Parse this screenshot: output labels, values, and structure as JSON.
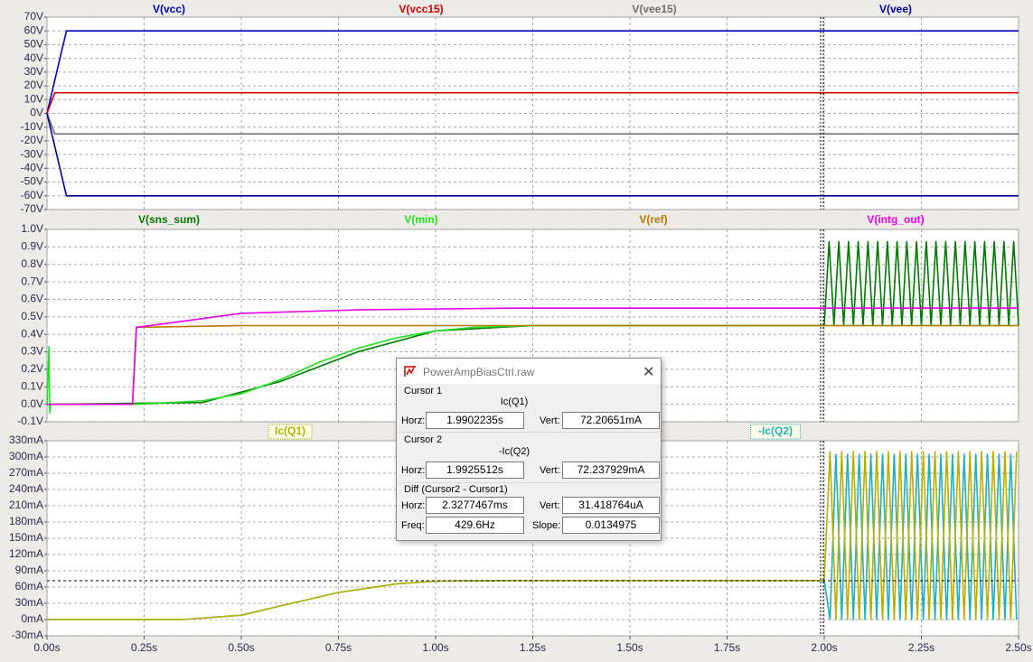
{
  "chart_data": [
    {
      "type": "line",
      "xlim": [
        0,
        2.5
      ],
      "ylim": [
        -70,
        70
      ],
      "yticks": [
        {
          "value": 70,
          "label": "70V"
        },
        {
          "value": 60,
          "label": "60V"
        },
        {
          "value": 50,
          "label": "50V"
        },
        {
          "value": 40,
          "label": "40V"
        },
        {
          "value": 30,
          "label": "30V"
        },
        {
          "value": 20,
          "label": "20V"
        },
        {
          "value": 10,
          "label": "10V"
        },
        {
          "value": 0,
          "label": "0V"
        },
        {
          "value": -10,
          "label": "-10V"
        },
        {
          "value": -20,
          "label": "-20V"
        },
        {
          "value": -30,
          "label": "-30V"
        },
        {
          "value": -40,
          "label": "-40V"
        },
        {
          "value": -50,
          "label": "-50V"
        },
        {
          "value": -60,
          "label": "-60V"
        },
        {
          "value": -70,
          "label": "-70V"
        }
      ],
      "grid": true,
      "series": [
        {
          "name": "V(vcc)",
          "color": "#0000c8",
          "x": [
            0,
            0.02,
            0.05,
            2.5
          ],
          "values": [
            0,
            24,
            60,
            60
          ]
        },
        {
          "name": "V(vcc15)",
          "color": "#d00000",
          "x": [
            0,
            0.02,
            0.05,
            2.5
          ],
          "values": [
            0,
            15,
            15,
            15
          ]
        },
        {
          "name": "V(vee15)",
          "color": "#707070",
          "x": [
            0,
            0.02,
            0.05,
            2.5
          ],
          "values": [
            0,
            -15,
            -15,
            -15
          ]
        },
        {
          "name": "V(vee)",
          "color": "#00009a",
          "x": [
            0,
            0.02,
            0.05,
            2.5
          ],
          "values": [
            0,
            -24,
            -60,
            -60
          ]
        }
      ]
    },
    {
      "type": "line",
      "xlim": [
        0,
        2.5
      ],
      "ylim": [
        -0.1,
        1.0
      ],
      "yticks": [
        {
          "value": 1.0,
          "label": "1.0V"
        },
        {
          "value": 0.9,
          "label": "0.9V"
        },
        {
          "value": 0.8,
          "label": "0.8V"
        },
        {
          "value": 0.7,
          "label": "0.7V"
        },
        {
          "value": 0.6,
          "label": "0.6V"
        },
        {
          "value": 0.5,
          "label": "0.5V"
        },
        {
          "value": 0.4,
          "label": "0.4V"
        },
        {
          "value": 0.3,
          "label": "0.3V"
        },
        {
          "value": 0.2,
          "label": "0.2V"
        },
        {
          "value": 0.1,
          "label": "0.1V"
        },
        {
          "value": 0.0,
          "label": "0.0V"
        },
        {
          "value": -0.1,
          "label": "-0.1V"
        }
      ],
      "grid": true,
      "series": [
        {
          "name": "V(sns_sum)",
          "color": "#007a00",
          "x": [
            0,
            0.4,
            0.6,
            0.8,
            1.0,
            1.25,
            2.0,
            2.0125,
            2.025,
            2.0375,
            2.05,
            2.0625,
            2.075,
            2.0875,
            2.1,
            2.1125,
            2.125,
            2.1375,
            2.15,
            2.1625,
            2.175,
            2.1875,
            2.2,
            2.2125,
            2.225,
            2.2375,
            2.25,
            2.2625,
            2.275,
            2.2875,
            2.3,
            2.3125,
            2.325,
            2.3375,
            2.35,
            2.3625,
            2.375,
            2.3875,
            2.4,
            2.4125,
            2.425,
            2.4375,
            2.45,
            2.4625,
            2.475,
            2.4875,
            2.5
          ],
          "values": [
            0,
            0.01,
            0.13,
            0.3,
            0.42,
            0.45,
            0.45,
            0.93,
            0.45,
            0.93,
            0.45,
            0.93,
            0.45,
            0.93,
            0.45,
            0.93,
            0.45,
            0.93,
            0.45,
            0.93,
            0.45,
            0.93,
            0.45,
            0.93,
            0.45,
            0.93,
            0.45,
            0.93,
            0.45,
            0.93,
            0.45,
            0.93,
            0.45,
            0.93,
            0.45,
            0.93,
            0.45,
            0.93,
            0.45,
            0.93,
            0.45,
            0.93,
            0.45,
            0.93,
            0.45,
            0.93,
            0.45
          ]
        },
        {
          "name": "V(min)",
          "color": "#22e022",
          "x": [
            0,
            0.005,
            0.007,
            0.01,
            0.02,
            0.23,
            0.4,
            0.5,
            0.6,
            0.7,
            0.8,
            0.9,
            1.0,
            1.1,
            1.25,
            2.0,
            2.5
          ],
          "values": [
            0,
            0.33,
            -0.05,
            0,
            0,
            0,
            0.02,
            0.06,
            0.14,
            0.24,
            0.32,
            0.38,
            0.42,
            0.44,
            0.45,
            0.45,
            0.45
          ]
        },
        {
          "name": "V(ref)",
          "color": "#b87800",
          "x": [
            0,
            0.22,
            0.23,
            0.5,
            2.0,
            2.5
          ],
          "values": [
            0,
            0,
            0.44,
            0.45,
            0.45,
            0.45
          ]
        },
        {
          "name": "V(intg_out)",
          "color": "#e800e8",
          "x": [
            0,
            0.22,
            0.23,
            0.3,
            0.5,
            0.8,
            1.2,
            2.0,
            2.5
          ],
          "values": [
            0,
            0,
            0.44,
            0.46,
            0.52,
            0.54,
            0.55,
            0.55,
            0.55
          ]
        }
      ]
    },
    {
      "type": "line",
      "xlim": [
        0,
        2.5
      ],
      "ylim": [
        -30,
        330
      ],
      "xticks": [
        {
          "value": 0,
          "label": "0.00s"
        },
        {
          "value": 0.25,
          "label": "0.25s"
        },
        {
          "value": 0.5,
          "label": "0.50s"
        },
        {
          "value": 0.75,
          "label": "0.75s"
        },
        {
          "value": 1.0,
          "label": "1.00s"
        },
        {
          "value": 1.25,
          "label": "1.25s"
        },
        {
          "value": 1.5,
          "label": "1.50s"
        },
        {
          "value": 1.75,
          "label": "1.75s"
        },
        {
          "value": 2.0,
          "label": "2.00s"
        },
        {
          "value": 2.25,
          "label": "2.25s"
        },
        {
          "value": 2.5,
          "label": "2.50s"
        }
      ],
      "yticks": [
        {
          "value": 330,
          "label": "330mA"
        },
        {
          "value": 300,
          "label": "300mA"
        },
        {
          "value": 270,
          "label": "270mA"
        },
        {
          "value": 240,
          "label": "240mA"
        },
        {
          "value": 210,
          "label": "210mA"
        },
        {
          "value": 180,
          "label": "180mA"
        },
        {
          "value": 150,
          "label": "150mA"
        },
        {
          "value": 120,
          "label": "120mA"
        },
        {
          "value": 90,
          "label": "90mA"
        },
        {
          "value": 60,
          "label": "60mA"
        },
        {
          "value": 30,
          "label": "30mA"
        },
        {
          "value": 0,
          "label": "0mA"
        },
        {
          "value": -30,
          "label": "-30mA"
        }
      ],
      "grid": true,
      "series": [
        {
          "name": "-Ic(Q2)",
          "color": "#20b0b8",
          "x": [
            0,
            0.35,
            0.5,
            0.6,
            0.75,
            0.9,
            1.0,
            1.2,
            2.0,
            2.015,
            2.03,
            2.045,
            2.06,
            2.075,
            2.09,
            2.105,
            2.12,
            2.135,
            2.15,
            2.165,
            2.18,
            2.195,
            2.21,
            2.225,
            2.24,
            2.255,
            2.27,
            2.285,
            2.3,
            2.315,
            2.33,
            2.345,
            2.36,
            2.375,
            2.39,
            2.405,
            2.42,
            2.435,
            2.45,
            2.465,
            2.48,
            2.495
          ],
          "values": [
            0,
            0,
            8,
            25,
            50,
            66,
            71,
            72,
            72,
            0,
            305,
            0,
            305,
            0,
            305,
            0,
            305,
            0,
            305,
            0,
            305,
            0,
            305,
            0,
            305,
            0,
            305,
            0,
            305,
            0,
            305,
            0,
            305,
            0,
            305,
            0,
            305,
            0,
            305,
            0,
            305,
            0
          ]
        },
        {
          "name": "Ic(Q1)",
          "color": "#b8b000",
          "x": [
            0,
            0.35,
            0.5,
            0.6,
            0.75,
            0.9,
            1.0,
            1.2,
            2.0,
            2.015,
            2.03,
            2.045,
            2.06,
            2.075,
            2.09,
            2.105,
            2.12,
            2.135,
            2.15,
            2.165,
            2.18,
            2.195,
            2.21,
            2.225,
            2.24,
            2.255,
            2.27,
            2.285,
            2.3,
            2.315,
            2.33,
            2.345,
            2.36,
            2.375,
            2.39,
            2.405,
            2.42,
            2.435,
            2.45,
            2.465,
            2.48,
            2.495
          ],
          "values": [
            0,
            0,
            8,
            25,
            50,
            66,
            71,
            72,
            72,
            310,
            0,
            310,
            0,
            310,
            0,
            310,
            0,
            310,
            0,
            310,
            0,
            310,
            0,
            310,
            0,
            310,
            0,
            310,
            0,
            310,
            0,
            310,
            0,
            310,
            0,
            310,
            0,
            310,
            0,
            310,
            0,
            310
          ]
        }
      ]
    }
  ],
  "dialog": {
    "title": "PowerAmpBiasCtrl.raw",
    "sections": [
      {
        "title": "Cursor 1",
        "trace": "Ic(Q1)",
        "fields": [
          {
            "label": "Horz:",
            "value": "1.9902235s"
          },
          {
            "label": "Vert:",
            "value": "72.20651mA"
          }
        ]
      },
      {
        "title": "Cursor 2",
        "trace": "-Ic(Q2)",
        "fields": [
          {
            "label": "Horz:",
            "value": "1.9925512s"
          },
          {
            "label": "Vert:",
            "value": "72.237929mA"
          }
        ]
      },
      {
        "title": "Diff (Cursor2 - Cursor1)",
        "fields": [
          {
            "label": "Horz:",
            "value": "2.3277467ms"
          },
          {
            "label": "Vert:",
            "value": "31.418764uA"
          },
          {
            "label": "Freq:",
            "value": "429.6Hz"
          },
          {
            "label": "Slope:",
            "value": "0.0134975"
          }
        ]
      }
    ]
  }
}
